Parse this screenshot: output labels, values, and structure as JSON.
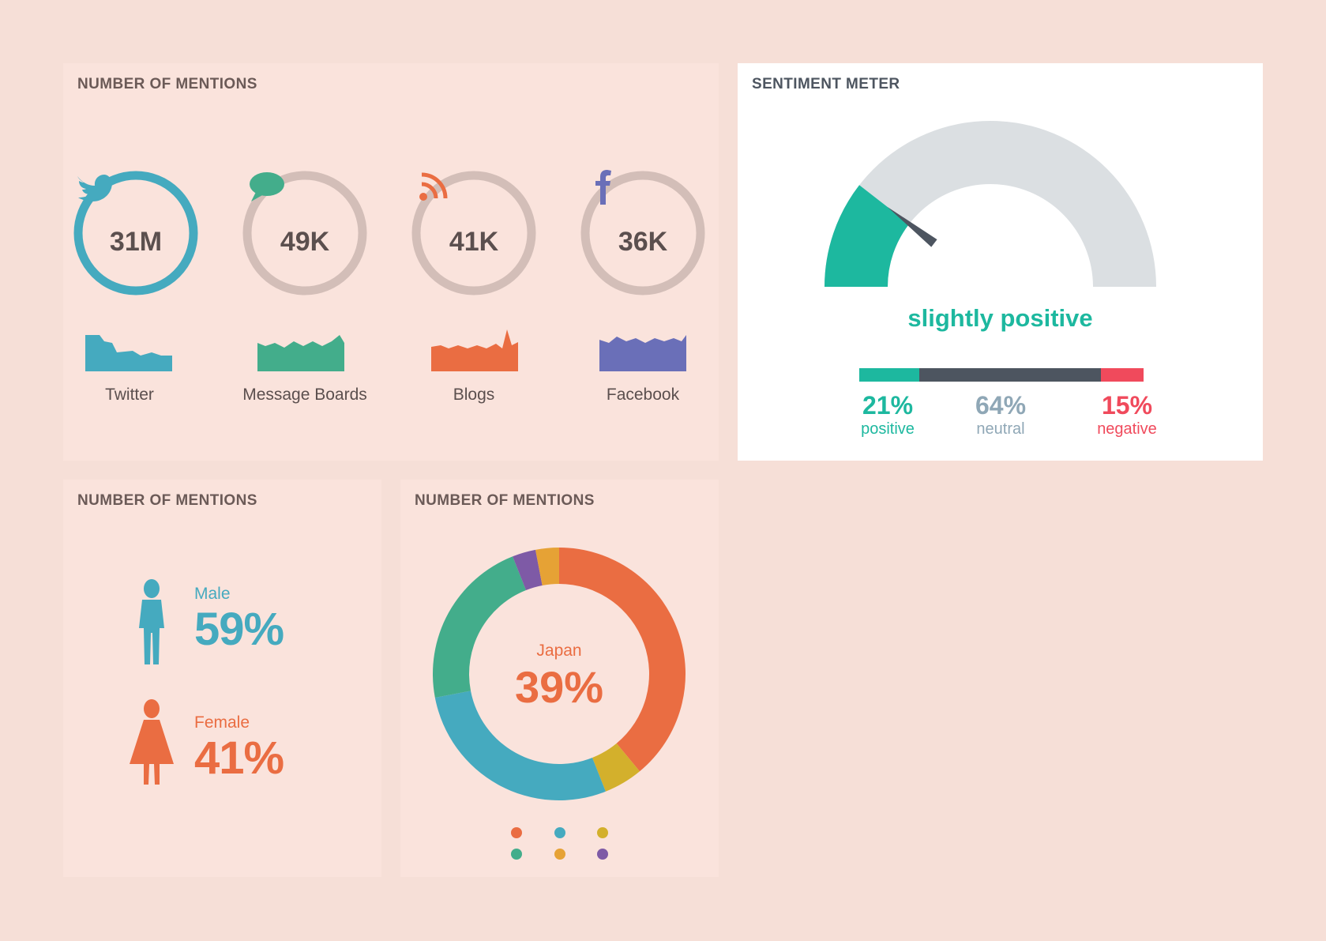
{
  "mentions_panel": {
    "title": "NUMBER OF MENTIONS",
    "channels": [
      {
        "label": "Twitter",
        "value": "31M",
        "icon": "twitter-bird-icon",
        "color": "#45aabf",
        "ring_color": "#45aabf"
      },
      {
        "label": "Message Boards",
        "value": "49K",
        "icon": "speech-bubble-icon",
        "color": "#43ad8b",
        "ring_color": "#d3beb8"
      },
      {
        "label": "Blogs",
        "value": "41K",
        "icon": "rss-icon",
        "color": "#ea6d42",
        "ring_color": "#d3beb8"
      },
      {
        "label": "Facebook",
        "value": "36K",
        "icon": "facebook-icon",
        "color": "#6a6fb8",
        "ring_color": "#d3beb8"
      }
    ]
  },
  "sentiment_panel": {
    "title": "SENTIMENT METER",
    "status": "slightly positive",
    "gauge_fraction": 0.21,
    "segments": [
      {
        "pct": "21%",
        "label": "positive",
        "fraction": 0.21,
        "color": "#1db89f"
      },
      {
        "pct": "64%",
        "label": "neutral",
        "fraction": 0.64,
        "color": "#4d5560",
        "text_color": "#8fa7b6"
      },
      {
        "pct": "15%",
        "label": "negative",
        "fraction": 0.15,
        "color": "#f04a5c"
      }
    ]
  },
  "gender_panel": {
    "title": "NUMBER OF MENTIONS",
    "male": {
      "label": "Male",
      "value": "59%",
      "color": "#45aabf",
      "icon": "male-figure-icon"
    },
    "female": {
      "label": "Female",
      "value": "41%",
      "color": "#ea6d42",
      "icon": "female-figure-icon"
    }
  },
  "country_panel": {
    "title": "NUMBER OF MENTIONS",
    "highlight_label": "Japan",
    "highlight_value": "39%",
    "chart_data": {
      "type": "pie",
      "center_label": "Japan",
      "center_value": "39%",
      "values": [
        0.39,
        0.05,
        0.28,
        0.22,
        0.03,
        0.03
      ],
      "colors": [
        "#ea6d42",
        "#d3b02c",
        "#45aabf",
        "#43ad8b",
        "#7e5aa6",
        "#e6a235"
      ]
    },
    "legend_dot_colors": [
      "#ea6d42",
      "#45aabf",
      "#d3b02c",
      "#43ad8b",
      "#e6a235",
      "#7e5aa6"
    ]
  }
}
